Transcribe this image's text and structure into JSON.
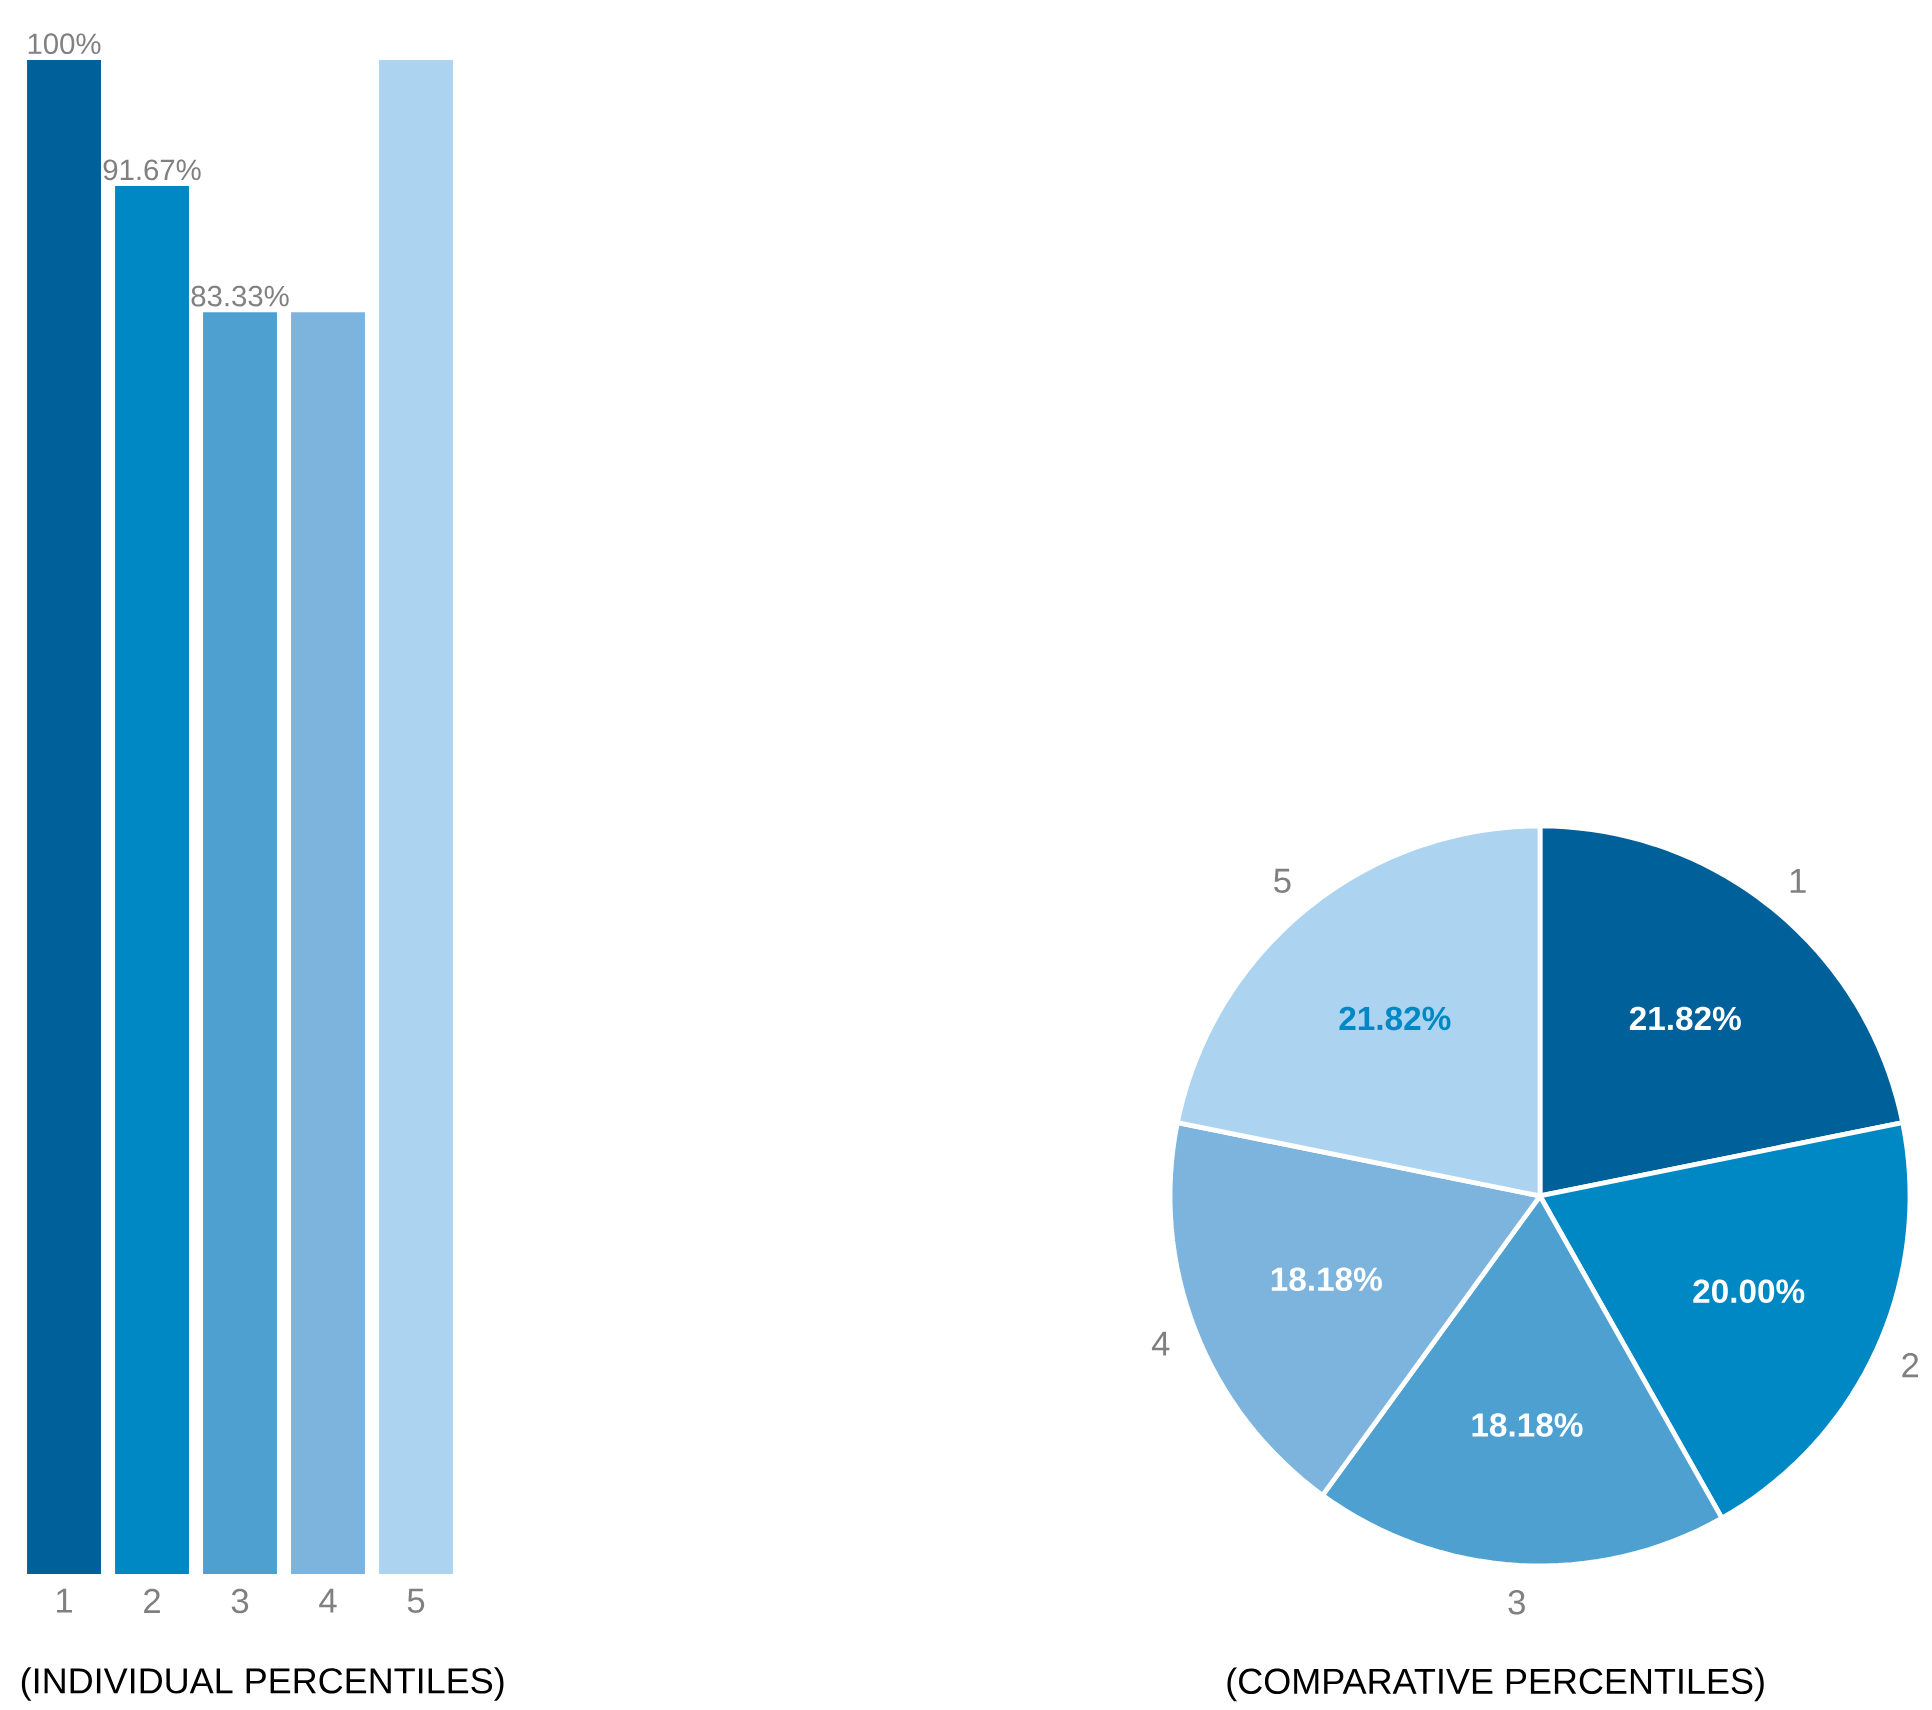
{
  "chart_data": [
    {
      "type": "bar",
      "title": "(INDIVIDUAL PERCENTILES)",
      "categories": [
        "1",
        "2",
        "3",
        "4",
        "5"
      ],
      "values": [
        100,
        91.67,
        83.33,
        83.33,
        100
      ],
      "value_labels": [
        "100%",
        "91.67%",
        "83.33%",
        null,
        null
      ],
      "colors": [
        "#00619a",
        "#0088c4",
        "#4ea0d0",
        "#7cb4de",
        "#acd4f0"
      ]
    },
    {
      "type": "pie",
      "title": "(COMPARATIVE PERCENTILES)",
      "categories": [
        "1",
        "2",
        "3",
        "4",
        "5"
      ],
      "values": [
        21.82,
        20.0,
        18.18,
        18.18,
        21.82
      ],
      "value_labels": [
        "21.82%",
        "20.00%",
        "18.18%",
        "18.18%",
        "21.82%"
      ],
      "colors": [
        "#00619a",
        "#0088c4",
        "#4ea0d0",
        "#7cb4de",
        "#acd4f0"
      ]
    }
  ]
}
